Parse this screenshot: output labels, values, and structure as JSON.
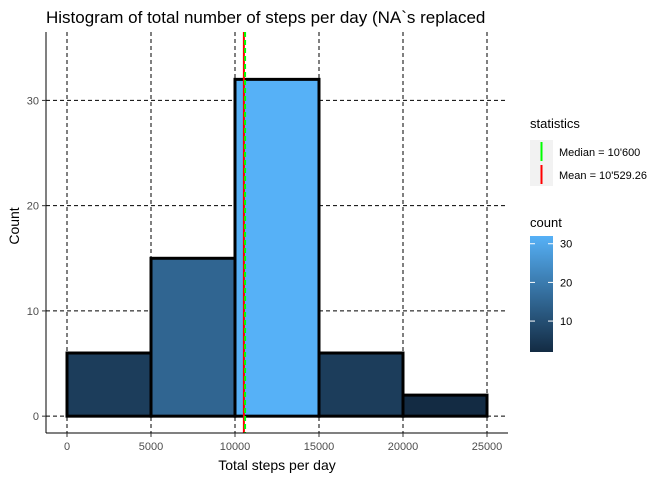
{
  "chart_data": {
    "type": "bar",
    "title": "Histogram of total number of steps per day (NA`s replaced",
    "xlabel": "Total steps per day",
    "ylabel": "Count",
    "bins": [
      {
        "from": 0,
        "to": 5000,
        "count": 6
      },
      {
        "from": 5000,
        "to": 10000,
        "count": 15
      },
      {
        "from": 10000,
        "to": 15000,
        "count": 32
      },
      {
        "from": 15000,
        "to": 20000,
        "count": 6
      },
      {
        "from": 20000,
        "to": 25000,
        "count": 2
      }
    ],
    "xlim": [
      -1250,
      26250
    ],
    "ylim": [
      -1.6,
      36.5
    ],
    "x_ticks": [
      0,
      5000,
      10000,
      15000,
      20000,
      25000
    ],
    "x_tick_labels": [
      "0",
      "5000",
      "10000",
      "15000",
      "20000",
      "25000"
    ],
    "y_ticks": [
      0,
      10,
      20,
      30
    ],
    "y_tick_labels": [
      "0",
      "10",
      "20",
      "30"
    ],
    "grid": true,
    "grid_style": "dashed",
    "vlines": [
      {
        "name": "Median = 10'600",
        "value": 10600,
        "color": "#00ff00"
      },
      {
        "name": "Mean = 10'529.26",
        "value": 10529.26,
        "color": "#ff0000"
      }
    ],
    "legend": {
      "position": "right",
      "statistics_title": "statistics",
      "count_title": "count",
      "count_ticks": [
        10,
        20,
        30
      ],
      "count_tick_labels": [
        "10",
        "20",
        "30"
      ],
      "count_range": [
        2,
        32
      ],
      "color_low": "#132b43",
      "color_high": "#56b1f7"
    }
  }
}
